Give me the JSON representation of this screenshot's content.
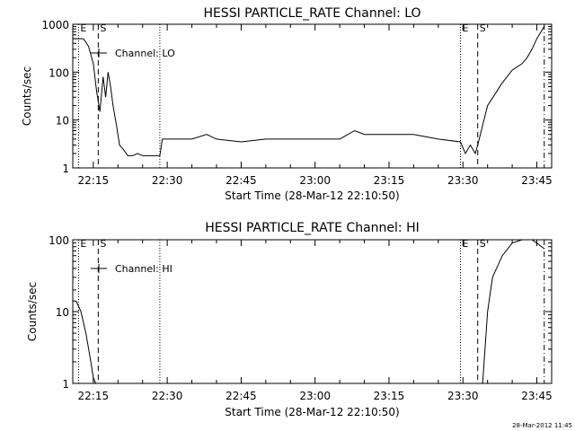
{
  "chart_data": [
    {
      "type": "line",
      "title": "HESSI PARTICLE_RATE Channel: LO",
      "xlabel": "Start Time (28-Mar-12 22:10:50)",
      "ylabel": "Counts/sec",
      "yscale": "log",
      "ylim": [
        1,
        1000
      ],
      "xlim": [
        "22:10:50",
        "23:48:00"
      ],
      "x_ticks": [
        "22:15",
        "22:30",
        "22:45",
        "23:00",
        "23:15",
        "23:30",
        "23:45"
      ],
      "y_ticks": [
        "1",
        "10",
        "100",
        "1000"
      ],
      "legend": "Channel: LO",
      "markers": [
        {
          "label": "E",
          "time": "22:12:00",
          "style": "dotted"
        },
        {
          "label": "S",
          "time": "22:16:00",
          "style": "dashed"
        },
        {
          "label": "",
          "time": "22:28:30",
          "style": "dotted"
        },
        {
          "label": "E",
          "time": "23:29:30",
          "style": "dotted"
        },
        {
          "label": "S",
          "time": "23:33:00",
          "style": "dashed"
        },
        {
          "label": "",
          "time": "23:46:30",
          "style": "dash-dot"
        }
      ],
      "series": [
        {
          "x": [
            "22:10:50",
            "22:13:00",
            "22:14:00",
            "22:15:00",
            "22:15:40",
            "22:16:20",
            "22:17:00",
            "22:17:30",
            "22:18:00",
            "22:18:30",
            "22:19:00",
            "22:19:40",
            "22:20:20",
            "22:21:00",
            "22:22:00",
            "22:23:00",
            "22:24:00",
            "22:25:00",
            "22:26:00",
            "22:27:00",
            "22:28:30",
            "22:29:00",
            "22:35:00",
            "22:38:00",
            "22:40:00",
            "22:45:00",
            "22:50:00",
            "22:55:00",
            "23:00:00",
            "23:05:00",
            "23:08:00",
            "23:10:00",
            "23:15:00",
            "23:20:00",
            "23:25:00",
            "23:29:30",
            "23:30:30",
            "23:31:30",
            "23:32:30",
            "23:33:00",
            "23:35:00",
            "23:38:00",
            "23:40:00",
            "23:42:00",
            "23:43:00",
            "23:44:00",
            "23:45:00",
            "23:46:30"
          ],
          "values": [
            500,
            500,
            350,
            150,
            40,
            15,
            80,
            30,
            100,
            50,
            20,
            8,
            3,
            2.5,
            1.8,
            1.8,
            2,
            1.8,
            1.8,
            1.8,
            1.8,
            4,
            4,
            5,
            4,
            3.5,
            4,
            4,
            4,
            4,
            6,
            5,
            5,
            5,
            4,
            3.5,
            2,
            3,
            2,
            3,
            20,
            60,
            110,
            150,
            200,
            300,
            500,
            900
          ]
        }
      ]
    },
    {
      "type": "line",
      "title": "HESSI PARTICLE_RATE Channel: HI",
      "xlabel": "Start Time (28-Mar-12 22:10:50)",
      "ylabel": "Counts/sec",
      "yscale": "log",
      "ylim": [
        1,
        100
      ],
      "xlim": [
        "22:10:50",
        "23:48:00"
      ],
      "x_ticks": [
        "22:15",
        "22:30",
        "22:45",
        "23:00",
        "23:15",
        "23:30",
        "23:45"
      ],
      "y_ticks": [
        "1",
        "10",
        "100"
      ],
      "legend": "Channel: HI",
      "markers": [
        {
          "label": "E",
          "time": "22:12:00",
          "style": "dotted"
        },
        {
          "label": "S",
          "time": "22:16:00",
          "style": "dashed"
        },
        {
          "label": "",
          "time": "22:28:30",
          "style": "dotted"
        },
        {
          "label": "E",
          "time": "23:29:30",
          "style": "dotted"
        },
        {
          "label": "S",
          "time": "23:33:00",
          "style": "dashed"
        },
        {
          "label": "",
          "time": "23:46:30",
          "style": "dash-dot"
        }
      ],
      "series": [
        {
          "x": [
            "22:10:50",
            "22:11:30",
            "22:12:30",
            "22:13:30",
            "22:14:30",
            "22:15:00",
            "22:15:30"
          ],
          "values": [
            14,
            14,
            10,
            5,
            2,
            1.2,
            1
          ]
        },
        {
          "x": [
            "23:34:00",
            "23:35:00",
            "23:36:00",
            "23:38:00",
            "23:40:00",
            "23:42:00",
            "23:44:00",
            "23:45:00",
            "23:46:30"
          ],
          "values": [
            1,
            10,
            30,
            60,
            90,
            100,
            100,
            90,
            75
          ]
        }
      ]
    }
  ],
  "footer": {
    "timestamp": "28-Mar-2012 11:45"
  }
}
